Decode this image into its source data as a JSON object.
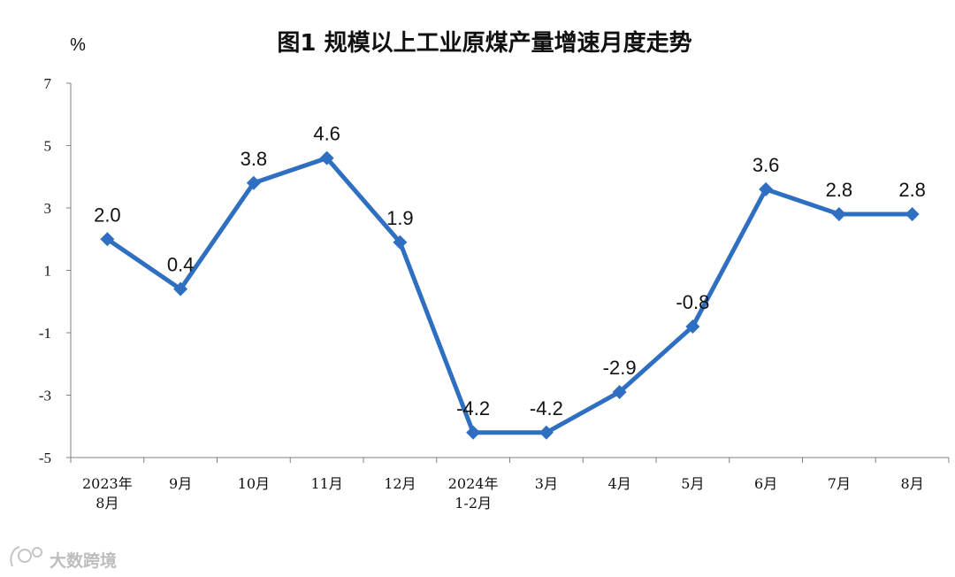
{
  "chart_data": {
    "type": "line",
    "title": "图1  规模以上工业原煤产量增速月度走势",
    "ylabel": "%",
    "xlabel": "",
    "ylim": [
      -5,
      7
    ],
    "yticks": [
      7,
      5,
      3,
      1,
      -1,
      -3,
      -5
    ],
    "categories": [
      [
        "2023年",
        "8月"
      ],
      [
        "9月"
      ],
      [
        "10月"
      ],
      [
        "11月"
      ],
      [
        "12月"
      ],
      [
        "2024年",
        "1-2月"
      ],
      [
        "3月"
      ],
      [
        "4月"
      ],
      [
        "5月"
      ],
      [
        "6月"
      ],
      [
        "7月"
      ],
      [
        "8月"
      ]
    ],
    "series": [
      {
        "values": [
          2.0,
          0.4,
          3.8,
          4.6,
          1.9,
          -4.2,
          -4.2,
          -2.9,
          -0.8,
          3.6,
          2.8,
          2.8
        ],
        "labels": [
          "2.0",
          "0.4",
          "3.8",
          "4.6",
          "1.9",
          "-4.2",
          "-4.2",
          "-2.9",
          "-0.8",
          "3.6",
          "2.8",
          "2.8"
        ],
        "color": "#2f6fc1",
        "marker": "diamond"
      }
    ],
    "grid": false,
    "legend": "none"
  },
  "watermark": {
    "text": "大数跨境",
    "icon": "watermark-logo-icon"
  }
}
